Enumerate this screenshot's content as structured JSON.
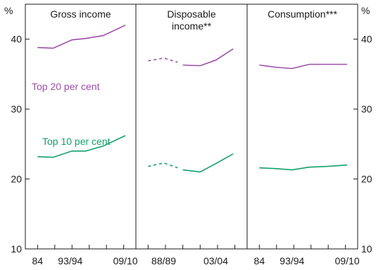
{
  "chart_data": {
    "type": "line",
    "y_axis": {
      "unit": "%",
      "ylim": [
        10,
        45
      ],
      "ticks": [
        10,
        20,
        30,
        40
      ],
      "grid": false
    },
    "colors": {
      "top20": "#9b4fa6",
      "top10": "#12a06a",
      "axis": "#1a1a1a"
    },
    "series_labels": {
      "top20": "Top 20 per cent",
      "top10": "Top 10 per cent"
    },
    "panels": [
      {
        "title": "Gross income",
        "xlim": [
          1982.5,
          2010.5
        ],
        "x_ticks": [
          1984,
          1989,
          1994,
          1999,
          2004,
          2009
        ],
        "x_tick_labels": [
          {
            "x": 1984,
            "label": "84"
          },
          {
            "x": 1993.5,
            "label": "93/94"
          },
          {
            "x": 2009.5,
            "label": "09/10"
          }
        ],
        "series": [
          {
            "group": "top20",
            "dashed": false,
            "points": [
              [
                1984,
                38.8
              ],
              [
                1988.5,
                38.7
              ],
              [
                1994,
                39.9
              ],
              [
                1998,
                40.1
              ],
              [
                2003,
                40.5
              ],
              [
                2009.5,
                42.0
              ]
            ]
          },
          {
            "group": "top10",
            "dashed": false,
            "points": [
              [
                1984,
                23.2
              ],
              [
                1988.5,
                23.1
              ],
              [
                1994,
                24.0
              ],
              [
                1998,
                24.0
              ],
              [
                2003,
                24.7
              ],
              [
                2009.5,
                26.2
              ]
            ]
          }
        ]
      },
      {
        "title": "Disposable income**",
        "xlim": [
          1982.5,
          2010.5
        ],
        "x_ticks": [
          1984,
          1989,
          1994,
          1999,
          2004,
          2009
        ],
        "x_tick_labels": [
          {
            "x": 1988.5,
            "label": "88/89"
          },
          {
            "x": 2003.5,
            "label": "03/04"
          }
        ],
        "series": [
          {
            "group": "top20",
            "dashed": true,
            "points": [
              [
                1984,
                36.9
              ],
              [
                1988.5,
                37.3
              ],
              [
                1992.5,
                36.7
              ]
            ]
          },
          {
            "group": "top20",
            "dashed": false,
            "points": [
              [
                1994,
                36.3
              ],
              [
                1999,
                36.2
              ],
              [
                2003.5,
                37.0
              ],
              [
                2008.5,
                38.6
              ]
            ]
          },
          {
            "group": "top10",
            "dashed": true,
            "points": [
              [
                1984,
                21.8
              ],
              [
                1988.5,
                22.3
              ],
              [
                1992.5,
                21.6
              ]
            ]
          },
          {
            "group": "top10",
            "dashed": false,
            "points": [
              [
                1994,
                21.3
              ],
              [
                1999,
                21.0
              ],
              [
                2003.5,
                22.2
              ],
              [
                2008.5,
                23.6
              ]
            ]
          }
        ]
      },
      {
        "title": "Consumption***",
        "xlim": [
          1982.5,
          2010.5
        ],
        "x_ticks": [
          1984,
          1989,
          1994,
          1999,
          2004,
          2009
        ],
        "x_tick_labels": [
          {
            "x": 1984,
            "label": "84"
          },
          {
            "x": 1993.5,
            "label": "93/94"
          },
          {
            "x": 2009.5,
            "label": "09/10"
          }
        ],
        "series": [
          {
            "group": "top20",
            "dashed": false,
            "points": [
              [
                1984,
                36.3
              ],
              [
                1988.5,
                36.0
              ],
              [
                1993.5,
                35.8
              ],
              [
                1998.5,
                36.4
              ],
              [
                2003.5,
                36.4
              ],
              [
                2009.5,
                36.4
              ]
            ]
          },
          {
            "group": "top10",
            "dashed": false,
            "points": [
              [
                1984,
                21.6
              ],
              [
                1988.5,
                21.5
              ],
              [
                1993.5,
                21.3
              ],
              [
                1998.5,
                21.7
              ],
              [
                2003.5,
                21.8
              ],
              [
                2009.5,
                22.0
              ]
            ]
          }
        ]
      }
    ]
  }
}
